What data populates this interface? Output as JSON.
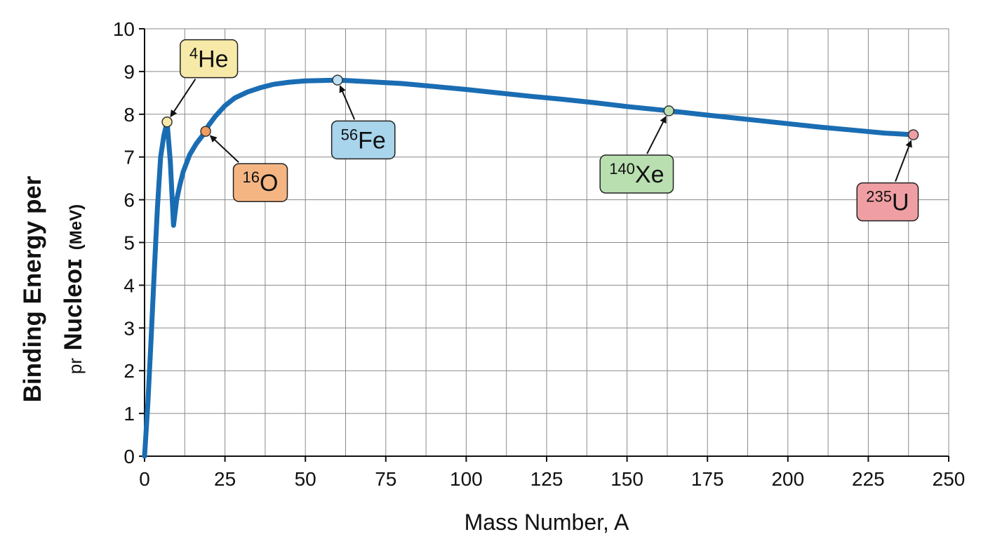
{
  "chart_data": {
    "type": "line",
    "xlabel": "Mass Number, A",
    "ylabel_line1": "Binding Energy per",
    "ylabel_line2_prefix": "pr",
    "ylabel_line2_main": "Nucleoɪ",
    "ylabel_line2_unit": "(MeV)",
    "xlim": [
      0,
      250
    ],
    "ylim": [
      0,
      10
    ],
    "x_ticks": [
      0,
      25,
      50,
      75,
      100,
      125,
      150,
      175,
      200,
      225,
      250
    ],
    "y_ticks": [
      0,
      1,
      2,
      3,
      4,
      5,
      6,
      7,
      8,
      9,
      10
    ],
    "x_grid": [
      0,
      12.5,
      25,
      37.5,
      50,
      62.5,
      75,
      87.5,
      100,
      112.5,
      125,
      137.5,
      150,
      162.5,
      175,
      187.5,
      200,
      212.5,
      225,
      237.5,
      250
    ],
    "grid": true,
    "line_color": "#1a6db3",
    "series": [
      {
        "x": [
          0,
          1,
          2,
          3,
          4,
          5,
          6,
          7,
          8,
          9,
          10,
          11,
          12,
          14,
          16,
          18,
          20,
          22,
          25,
          28,
          32,
          36,
          40,
          45,
          50,
          55,
          60,
          65,
          70,
          80,
          90,
          100,
          110,
          120,
          130,
          140,
          150,
          163,
          175,
          190,
          200,
          210,
          220,
          230,
          239
        ],
        "y": [
          0,
          1.2,
          2.7,
          4.3,
          5.8,
          7.0,
          7.5,
          7.82,
          6.9,
          5.4,
          6.0,
          6.35,
          6.65,
          7.05,
          7.3,
          7.5,
          7.75,
          7.95,
          8.2,
          8.38,
          8.52,
          8.62,
          8.7,
          8.75,
          8.78,
          8.79,
          8.8,
          8.78,
          8.76,
          8.72,
          8.65,
          8.58,
          8.5,
          8.42,
          8.35,
          8.27,
          8.18,
          8.08,
          7.98,
          7.86,
          7.78,
          7.7,
          7.63,
          7.56,
          7.52
        ]
      }
    ],
    "annotations": [
      {
        "sup": "4",
        "text": "He",
        "x": 7,
        "y": 7.82,
        "color": "#f7eaa8",
        "point_color": "#f7eaa8",
        "lx": 20,
        "ly": 9.3
      },
      {
        "sup": "16",
        "text": "O",
        "x": 19,
        "y": 7.6,
        "color": "#f5b583",
        "point_color": "#ee9c5f",
        "lx": 36,
        "ly": 6.4
      },
      {
        "sup": "56",
        "text": "Fe",
        "x": 60,
        "y": 8.8,
        "color": "#a8d4ec",
        "point_color": "#bfe0f2",
        "lx": 68,
        "ly": 7.4
      },
      {
        "sup": "140",
        "text": "Xe",
        "x": 163,
        "y": 8.08,
        "color": "#b9dfb0",
        "point_color": "#b9dfb0",
        "lx": 153,
        "ly": 6.6
      },
      {
        "sup": "235",
        "text": "U",
        "x": 239,
        "y": 7.52,
        "color": "#ef9fa3",
        "point_color": "#ef9fa3",
        "lx": 231,
        "ly": 5.95
      }
    ]
  }
}
